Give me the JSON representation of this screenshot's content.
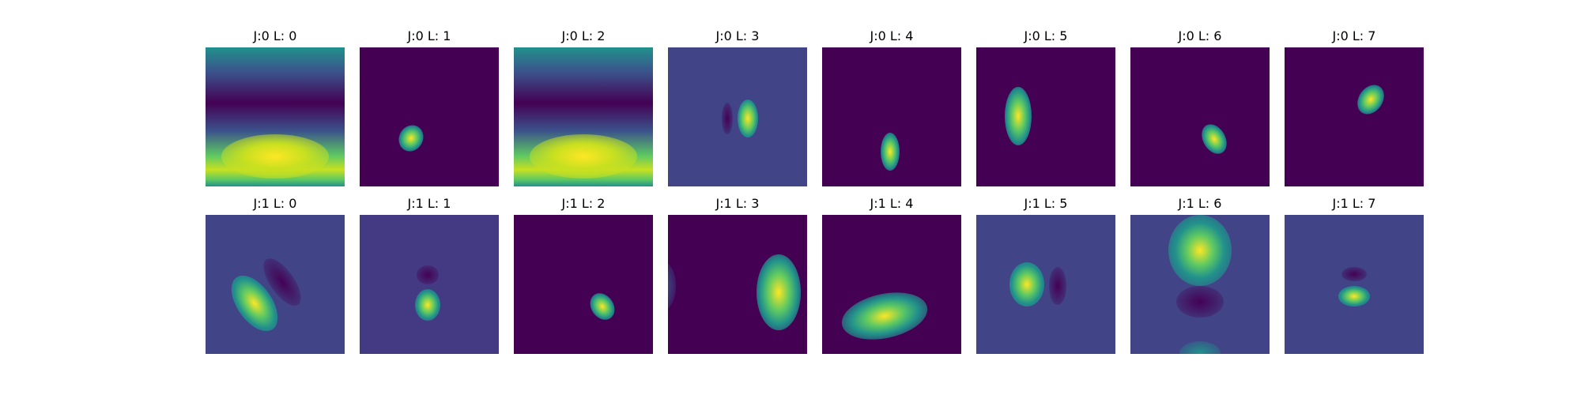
{
  "figure": {
    "colors": {
      "viridis_dark": "#440154",
      "viridis_blue": "#3b528b",
      "viridis_teal": "#21918c",
      "viridis_green": "#5ec962",
      "viridis_yellow": "#fde725",
      "background": "#ffffff"
    },
    "rows": [
      {
        "panels": [
          {
            "title": "J:0 L: 0",
            "pattern": "horizontal-bands"
          },
          {
            "title": "J:0 L: 1",
            "pattern": "small-blob"
          },
          {
            "title": "J:0 L: 2",
            "pattern": "horizontal-bands"
          },
          {
            "title": "J:0 L: 3",
            "pattern": "dipole-vertical"
          },
          {
            "title": "J:0 L: 4",
            "pattern": "small-blob"
          },
          {
            "title": "J:0 L: 5",
            "pattern": "elongated-blob"
          },
          {
            "title": "J:0 L: 6",
            "pattern": "small-blob"
          },
          {
            "title": "J:0 L: 7",
            "pattern": "small-blob"
          }
        ]
      },
      {
        "panels": [
          {
            "title": "J:1 L: 0",
            "pattern": "diagonal-dipole"
          },
          {
            "title": "J:1 L: 1",
            "pattern": "vertical-dipole"
          },
          {
            "title": "J:1 L: 2",
            "pattern": "small-blob"
          },
          {
            "title": "J:1 L: 3",
            "pattern": "large-blob"
          },
          {
            "title": "J:1 L: 4",
            "pattern": "wide-blob"
          },
          {
            "title": "J:1 L: 5",
            "pattern": "horizontal-dipole"
          },
          {
            "title": "J:1 L: 6",
            "pattern": "vertical-tripole"
          },
          {
            "title": "J:1 L: 7",
            "pattern": "vertical-dipole"
          }
        ]
      }
    ]
  }
}
